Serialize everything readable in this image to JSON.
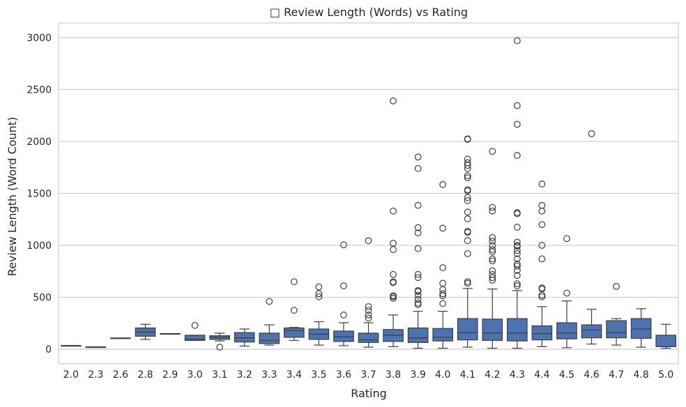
{
  "chart_data": {
    "type": "box",
    "title": "□ Review Length (Words) vs Rating",
    "xlabel": "Rating",
    "ylabel": "Review Length (Word Count)",
    "yticks": [
      0,
      500,
      1000,
      1500,
      2000,
      2500,
      3000
    ],
    "ylim": [
      -140,
      3140
    ],
    "grid": "horizontal",
    "colors": {
      "box": "#4c72b0",
      "line": "#3d3d3d",
      "grid": "#cccccc",
      "frame": "#cccccc"
    },
    "categories": [
      "2.0",
      "2.3",
      "2.6",
      "2.8",
      "2.9",
      "3.0",
      "3.1",
      "3.2",
      "3.3",
      "3.4",
      "3.5",
      "3.6",
      "3.7",
      "3.8",
      "3.9",
      "4.0",
      "4.1",
      "4.2",
      "4.3",
      "4.4",
      "4.5",
      "4.6",
      "4.7",
      "4.8",
      "5.0"
    ],
    "boxes": [
      {
        "category": "2.0",
        "whislo": 35,
        "q1": 35,
        "med": 35,
        "q3": 35,
        "whishi": 35,
        "fliers": []
      },
      {
        "category": "2.3",
        "whislo": 22,
        "q1": 22,
        "med": 22,
        "q3": 22,
        "whishi": 22,
        "fliers": []
      },
      {
        "category": "2.6",
        "whislo": 108,
        "q1": 108,
        "med": 108,
        "q3": 108,
        "whishi": 108,
        "fliers": []
      },
      {
        "category": "2.8",
        "whislo": 95,
        "q1": 125,
        "med": 165,
        "q3": 205,
        "whishi": 240,
        "fliers": []
      },
      {
        "category": "2.9",
        "whislo": 150,
        "q1": 150,
        "med": 150,
        "q3": 150,
        "whishi": 150,
        "fliers": []
      },
      {
        "category": "3.0",
        "whislo": 85,
        "q1": 85,
        "med": 95,
        "q3": 135,
        "whishi": 135,
        "fliers": [
          230
        ]
      },
      {
        "category": "3.1",
        "whislo": 80,
        "q1": 95,
        "med": 115,
        "q3": 130,
        "whishi": 155,
        "fliers": [
          20
        ]
      },
      {
        "category": "3.2",
        "whislo": 30,
        "q1": 70,
        "med": 110,
        "q3": 160,
        "whishi": 195,
        "fliers": []
      },
      {
        "category": "3.3",
        "whislo": 40,
        "q1": 55,
        "med": 85,
        "q3": 155,
        "whishi": 235,
        "fliers": [
          460
        ]
      },
      {
        "category": "3.4",
        "whislo": 85,
        "q1": 115,
        "med": 180,
        "q3": 205,
        "whishi": 210,
        "fliers": [
          375,
          650
        ]
      },
      {
        "category": "3.5",
        "whislo": 40,
        "q1": 95,
        "med": 145,
        "q3": 195,
        "whishi": 265,
        "fliers": [
          505,
          535,
          600
        ]
      },
      {
        "category": "3.6",
        "whislo": 35,
        "q1": 75,
        "med": 120,
        "q3": 175,
        "whishi": 255,
        "fliers": [
          330,
          610,
          1005
        ]
      },
      {
        "category": "3.7",
        "whislo": 20,
        "q1": 65,
        "med": 90,
        "q3": 155,
        "whishi": 255,
        "fliers": [
          300,
          330,
          375,
          410,
          1045
        ]
      },
      {
        "category": "3.8",
        "whislo": 25,
        "q1": 75,
        "med": 135,
        "q3": 190,
        "whishi": 330,
        "fliers": [
          490,
          505,
          515,
          640,
          650,
          720,
          960,
          1020,
          1330,
          2390
        ]
      },
      {
        "category": "3.9",
        "whislo": 10,
        "q1": 65,
        "med": 110,
        "q3": 205,
        "whishi": 365,
        "fliers": [
          430,
          445,
          480,
          520,
          555,
          565,
          690,
          720,
          970,
          1120,
          1170,
          1385,
          1740,
          1850
        ]
      },
      {
        "category": "4.0",
        "whislo": 10,
        "q1": 80,
        "med": 115,
        "q3": 200,
        "whishi": 365,
        "fliers": [
          440,
          515,
          535,
          575,
          635,
          785,
          1165,
          1585
        ]
      },
      {
        "category": "4.1",
        "whislo": 20,
        "q1": 90,
        "med": 160,
        "q3": 295,
        "whishi": 585,
        "fliers": [
          635,
          650,
          920,
          1045,
          1125,
          1135,
          1255,
          1320,
          1430,
          1460,
          1525,
          1535,
          1650,
          1670,
          1740,
          1770,
          1795,
          1830,
          2020,
          2025
        ]
      },
      {
        "category": "4.2",
        "whislo": 10,
        "q1": 85,
        "med": 155,
        "q3": 290,
        "whishi": 580,
        "fliers": [
          665,
          690,
          720,
          755,
          850,
          870,
          940,
          960,
          1000,
          1040,
          1075,
          1330,
          1365,
          1905
        ]
      },
      {
        "category": "4.3",
        "whislo": 10,
        "q1": 80,
        "med": 155,
        "q3": 295,
        "whishi": 565,
        "fliers": [
          610,
          630,
          710,
          760,
          800,
          820,
          870,
          920,
          950,
          990,
          1000,
          1030,
          1175,
          1305,
          1315,
          1865,
          2165,
          2345,
          2970
        ]
      },
      {
        "category": "4.4",
        "whislo": 25,
        "q1": 90,
        "med": 150,
        "q3": 225,
        "whishi": 410,
        "fliers": [
          505,
          520,
          580,
          590,
          870,
          1000,
          1200,
          1330,
          1385,
          1590
        ]
      },
      {
        "category": "4.5",
        "whislo": 15,
        "q1": 100,
        "med": 155,
        "q3": 255,
        "whishi": 465,
        "fliers": [
          540,
          1065
        ]
      },
      {
        "category": "4.6",
        "whislo": 50,
        "q1": 110,
        "med": 185,
        "q3": 235,
        "whishi": 385,
        "fliers": [
          2075
        ]
      },
      {
        "category": "4.7",
        "whislo": 40,
        "q1": 110,
        "med": 160,
        "q3": 275,
        "whishi": 295,
        "fliers": [
          605
        ]
      },
      {
        "category": "4.8",
        "whislo": 20,
        "q1": 105,
        "med": 195,
        "q3": 295,
        "whishi": 390,
        "fliers": []
      },
      {
        "category": "5.0",
        "whislo": 10,
        "q1": 25,
        "med": 25,
        "q3": 135,
        "whishi": 240,
        "fliers": []
      }
    ]
  }
}
